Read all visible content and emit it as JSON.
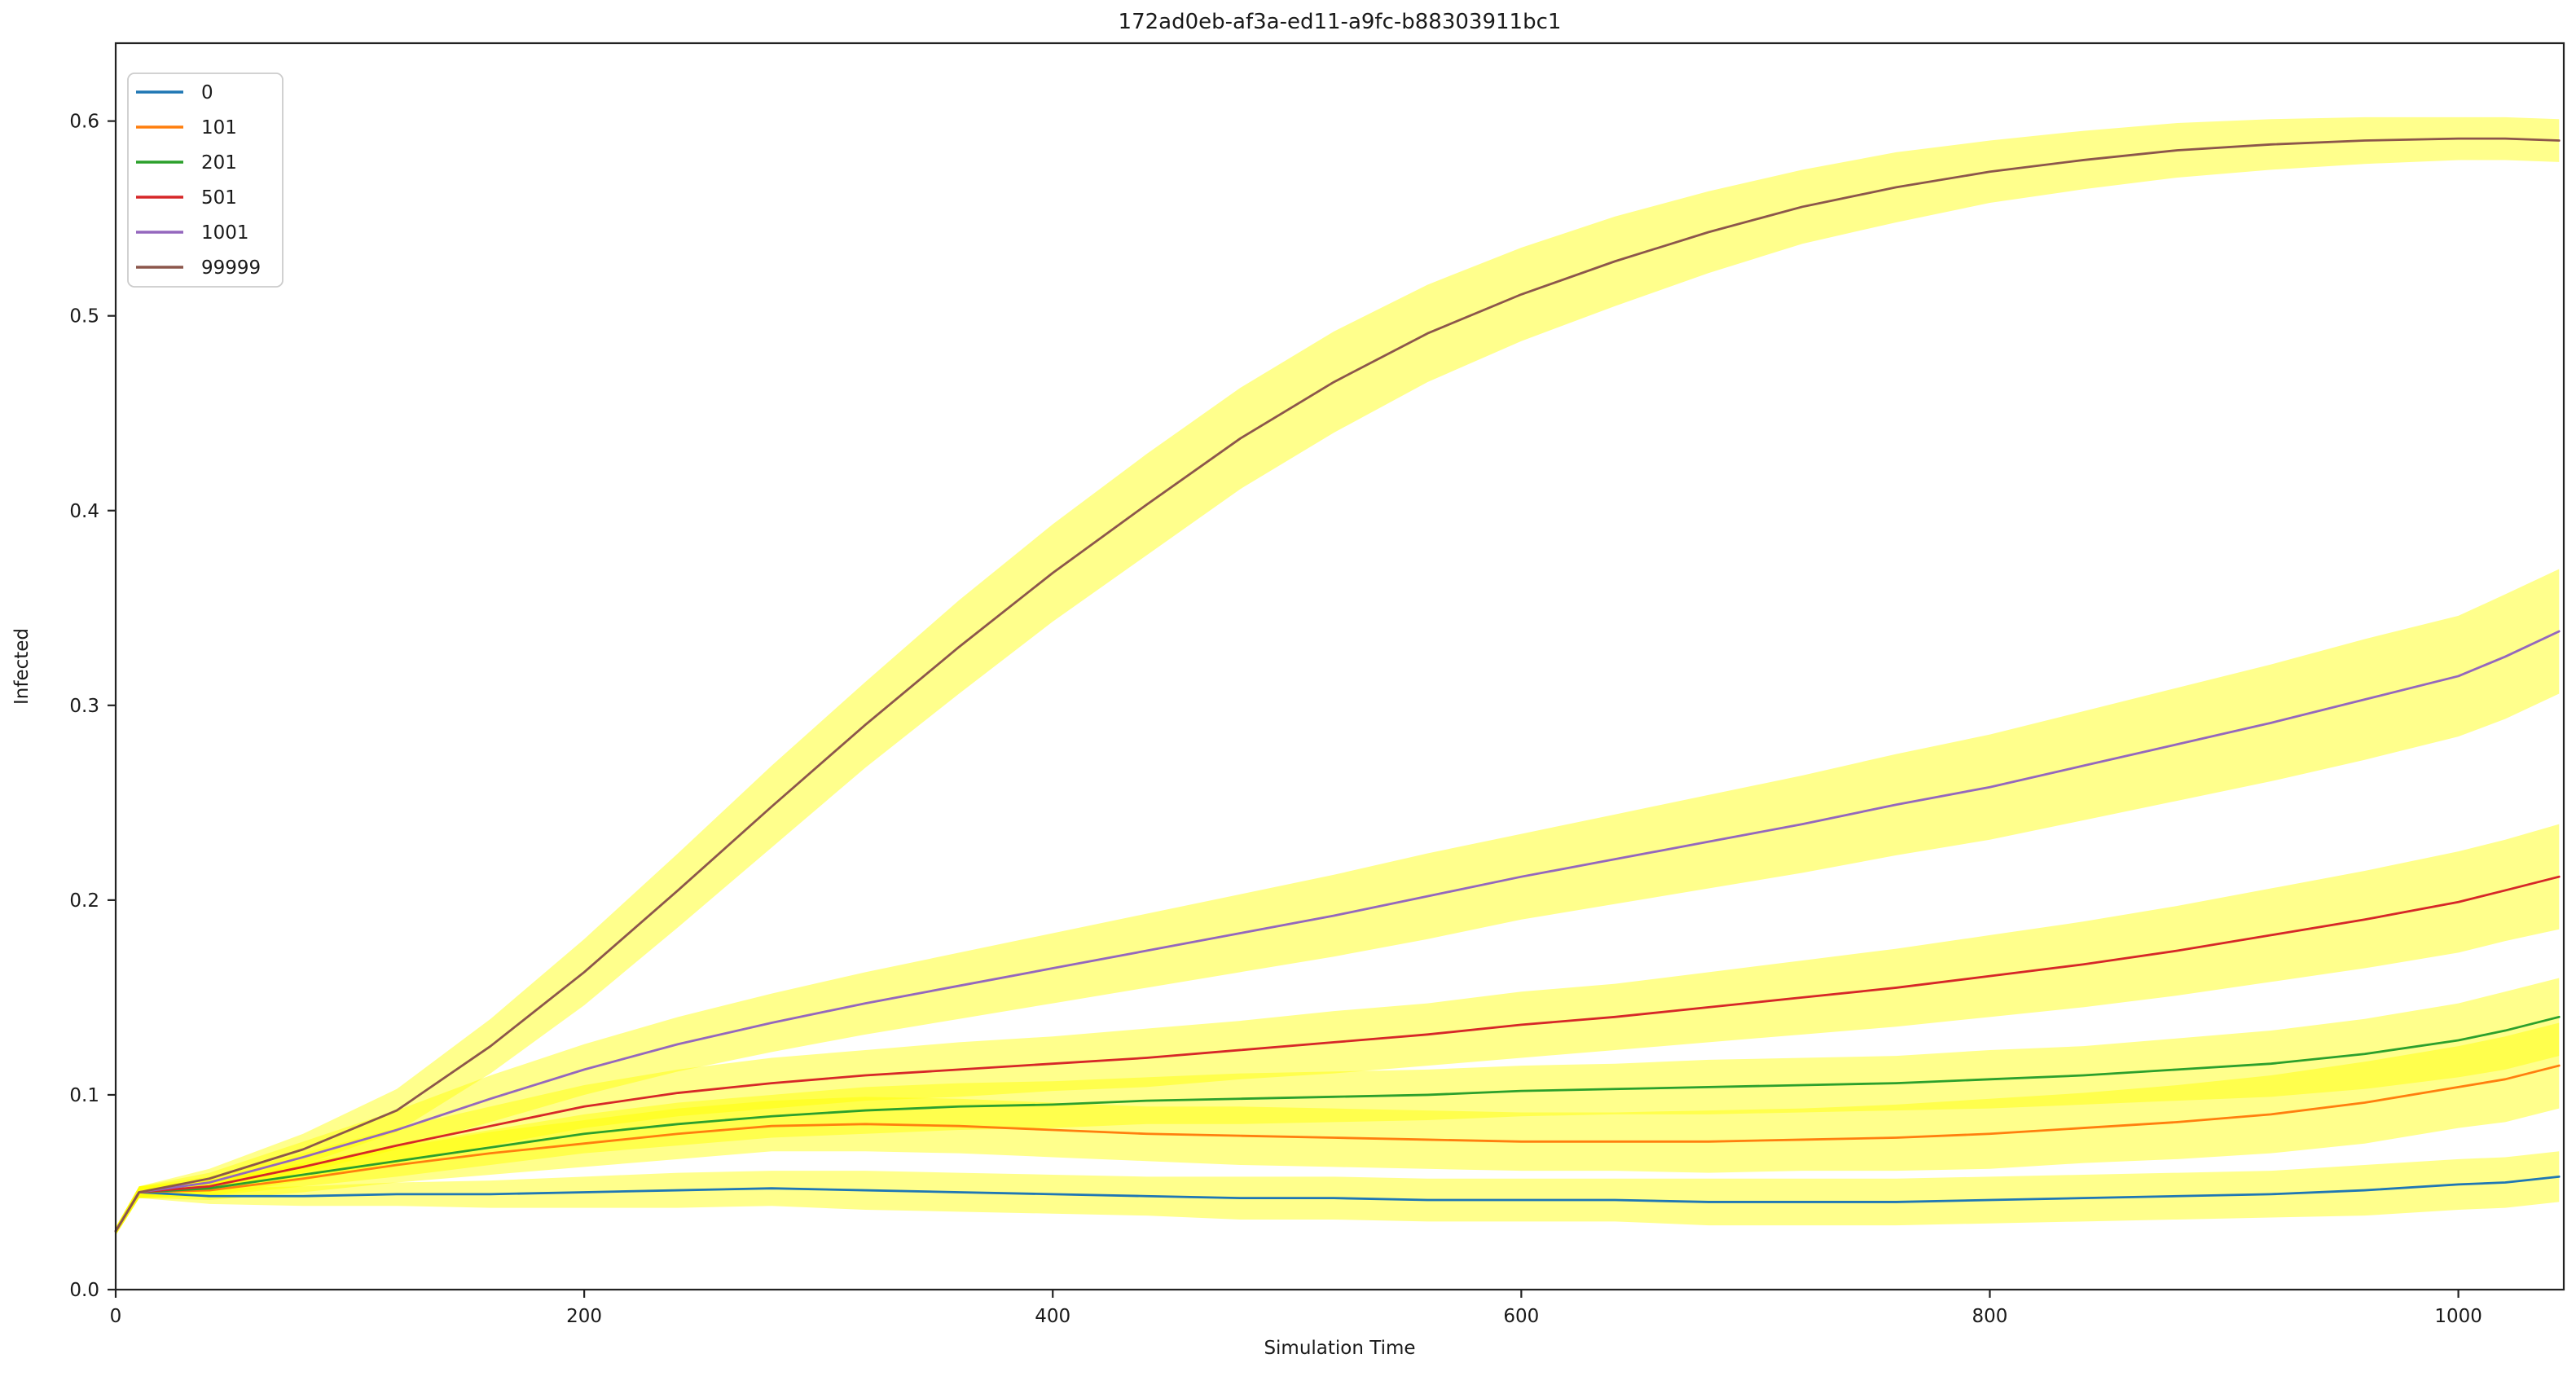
{
  "chart_data": {
    "type": "line",
    "title": "172ad0eb-af3a-ed11-a9fc-b88303911bc1",
    "xlabel": "Simulation Time",
    "ylabel": "Infected",
    "xlim": [
      0,
      1045
    ],
    "ylim": [
      0,
      0.64
    ],
    "x_tick_labels": [
      "0",
      "200",
      "400",
      "600",
      "800",
      "1000"
    ],
    "x_ticks": [
      0,
      200,
      400,
      600,
      800,
      1000
    ],
    "y_tick_labels": [
      "0.0",
      "0.1",
      "0.2",
      "0.3",
      "0.4",
      "0.5",
      "0.6"
    ],
    "y_ticks": [
      0.0,
      0.1,
      0.2,
      0.3,
      0.4,
      0.5,
      0.6
    ],
    "grid": false,
    "legend_position": "upper left",
    "band_color": "#ffff00",
    "band_opacity": 0.45,
    "axis_color": "#222222",
    "x": [
      0,
      10,
      40,
      80,
      120,
      160,
      200,
      240,
      280,
      320,
      360,
      400,
      440,
      480,
      520,
      560,
      600,
      640,
      680,
      720,
      760,
      800,
      840,
      880,
      920,
      960,
      1000,
      1020,
      1043
    ],
    "series": [
      {
        "name": "0",
        "color": "#1f77b4",
        "values": [
          0.03,
          0.05,
          0.048,
          0.048,
          0.049,
          0.049,
          0.05,
          0.051,
          0.052,
          0.051,
          0.05,
          0.049,
          0.048,
          0.047,
          0.047,
          0.046,
          0.046,
          0.046,
          0.045,
          0.045,
          0.045,
          0.046,
          0.047,
          0.048,
          0.049,
          0.051,
          0.054,
          0.055,
          0.058
        ],
        "band_halfwidth": [
          0.002,
          0.003,
          0.004,
          0.005,
          0.006,
          0.007,
          0.008,
          0.009,
          0.009,
          0.01,
          0.01,
          0.01,
          0.01,
          0.011,
          0.011,
          0.011,
          0.011,
          0.011,
          0.012,
          0.012,
          0.012,
          0.012,
          0.012,
          0.012,
          0.012,
          0.013,
          0.013,
          0.013,
          0.013
        ]
      },
      {
        "name": "101",
        "color": "#ff7f0e",
        "values": [
          0.03,
          0.05,
          0.051,
          0.057,
          0.064,
          0.07,
          0.075,
          0.08,
          0.084,
          0.085,
          0.084,
          0.082,
          0.08,
          0.079,
          0.078,
          0.077,
          0.076,
          0.076,
          0.076,
          0.077,
          0.078,
          0.08,
          0.083,
          0.086,
          0.09,
          0.096,
          0.104,
          0.108,
          0.115
        ],
        "band_halfwidth": [
          0.002,
          0.003,
          0.005,
          0.007,
          0.009,
          0.011,
          0.012,
          0.013,
          0.013,
          0.014,
          0.014,
          0.014,
          0.014,
          0.015,
          0.015,
          0.015,
          0.015,
          0.015,
          0.016,
          0.016,
          0.017,
          0.018,
          0.018,
          0.019,
          0.02,
          0.021,
          0.021,
          0.022,
          0.022
        ]
      },
      {
        "name": "201",
        "color": "#2ca02c",
        "values": [
          0.03,
          0.05,
          0.052,
          0.059,
          0.066,
          0.073,
          0.08,
          0.085,
          0.089,
          0.092,
          0.094,
          0.095,
          0.097,
          0.098,
          0.099,
          0.1,
          0.102,
          0.103,
          0.104,
          0.105,
          0.106,
          0.108,
          0.11,
          0.113,
          0.116,
          0.121,
          0.128,
          0.133,
          0.14
        ],
        "band_halfwidth": [
          0.002,
          0.003,
          0.004,
          0.006,
          0.008,
          0.009,
          0.01,
          0.011,
          0.011,
          0.012,
          0.012,
          0.012,
          0.012,
          0.013,
          0.013,
          0.013,
          0.013,
          0.013,
          0.014,
          0.014,
          0.014,
          0.015,
          0.015,
          0.016,
          0.017,
          0.018,
          0.019,
          0.02,
          0.02
        ]
      },
      {
        "name": "501",
        "color": "#d62728",
        "values": [
          0.03,
          0.05,
          0.053,
          0.063,
          0.074,
          0.084,
          0.094,
          0.101,
          0.106,
          0.11,
          0.113,
          0.116,
          0.119,
          0.123,
          0.127,
          0.131,
          0.136,
          0.14,
          0.145,
          0.15,
          0.155,
          0.161,
          0.167,
          0.174,
          0.182,
          0.19,
          0.199,
          0.205,
          0.212
        ],
        "band_halfwidth": [
          0.002,
          0.003,
          0.005,
          0.007,
          0.009,
          0.01,
          0.011,
          0.012,
          0.013,
          0.013,
          0.014,
          0.014,
          0.015,
          0.015,
          0.016,
          0.016,
          0.017,
          0.017,
          0.018,
          0.019,
          0.02,
          0.021,
          0.022,
          0.023,
          0.024,
          0.025,
          0.026,
          0.026,
          0.027
        ]
      },
      {
        "name": "1001",
        "color": "#9467bd",
        "values": [
          0.03,
          0.05,
          0.055,
          0.068,
          0.082,
          0.098,
          0.113,
          0.126,
          0.137,
          0.147,
          0.156,
          0.165,
          0.174,
          0.183,
          0.192,
          0.202,
          0.212,
          0.221,
          0.23,
          0.239,
          0.249,
          0.258,
          0.269,
          0.28,
          0.291,
          0.303,
          0.315,
          0.325,
          0.338
        ],
        "band_halfwidth": [
          0.002,
          0.003,
          0.005,
          0.008,
          0.01,
          0.012,
          0.013,
          0.014,
          0.015,
          0.016,
          0.017,
          0.018,
          0.019,
          0.02,
          0.021,
          0.022,
          0.022,
          0.023,
          0.024,
          0.025,
          0.026,
          0.027,
          0.028,
          0.029,
          0.03,
          0.031,
          0.031,
          0.032,
          0.032
        ]
      },
      {
        "name": "99999",
        "color": "#8c564b",
        "values": [
          0.03,
          0.05,
          0.057,
          0.072,
          0.092,
          0.125,
          0.163,
          0.205,
          0.248,
          0.29,
          0.33,
          0.368,
          0.403,
          0.437,
          0.466,
          0.491,
          0.511,
          0.528,
          0.543,
          0.556,
          0.566,
          0.574,
          0.58,
          0.585,
          0.588,
          0.59,
          0.591,
          0.591,
          0.59
        ],
        "band_halfwidth": [
          0.002,
          0.003,
          0.005,
          0.008,
          0.011,
          0.014,
          0.017,
          0.019,
          0.021,
          0.022,
          0.024,
          0.025,
          0.026,
          0.026,
          0.026,
          0.025,
          0.024,
          0.023,
          0.021,
          0.019,
          0.018,
          0.016,
          0.015,
          0.014,
          0.013,
          0.012,
          0.011,
          0.011,
          0.011
        ]
      }
    ]
  }
}
